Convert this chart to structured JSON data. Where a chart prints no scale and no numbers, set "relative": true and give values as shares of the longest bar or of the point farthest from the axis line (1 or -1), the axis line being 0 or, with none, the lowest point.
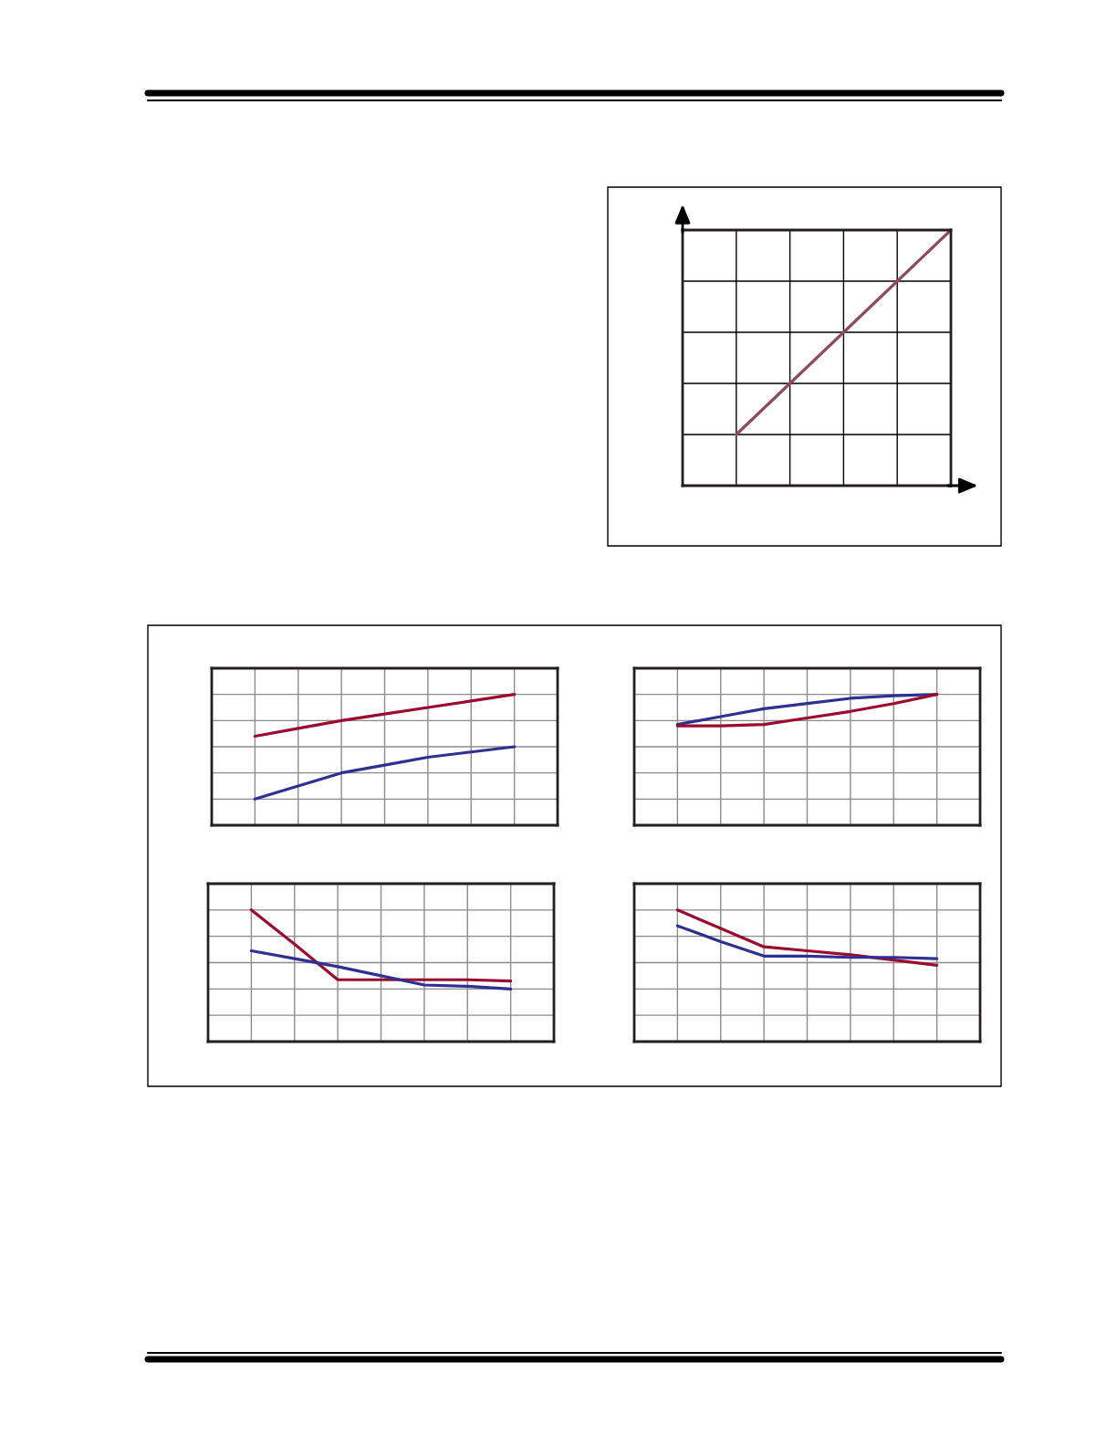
{
  "chart_data": [
    {
      "type": "line",
      "relative": true,
      "tick_labels": false,
      "grid": true,
      "categories": [
        null,
        null,
        null,
        null,
        null,
        null
      ],
      "series": [
        {
          "color": "#8e4a5f",
          "values": [
            null,
            0.2,
            0.4,
            0.6,
            0.8,
            1.0
          ]
        }
      ]
    },
    {
      "type": "line",
      "relative": true,
      "tick_labels": false,
      "grid": true,
      "categories": [
        null,
        null,
        null,
        null,
        null,
        null,
        null,
        null,
        null
      ],
      "series": [
        {
          "color": "#9b0b30",
          "values": [
            null,
            0.68,
            0.74,
            0.8,
            0.85,
            0.9,
            0.95,
            1.0,
            null
          ]
        },
        {
          "color": "#2e3192",
          "values": [
            null,
            0.2,
            0.3,
            0.4,
            0.46,
            0.52,
            0.56,
            0.6,
            null
          ]
        }
      ]
    },
    {
      "type": "line",
      "relative": true,
      "tick_labels": false,
      "grid": true,
      "categories": [
        null,
        null,
        null,
        null,
        null,
        null,
        null,
        null,
        null
      ],
      "series": [
        {
          "color": "#2e3192",
          "values": [
            null,
            0.77,
            0.83,
            0.89,
            0.93,
            0.97,
            0.99,
            1.0,
            null
          ]
        },
        {
          "color": "#9b0b30",
          "values": [
            null,
            0.76,
            0.76,
            0.77,
            0.82,
            0.87,
            0.93,
            1.0,
            null
          ]
        }
      ]
    },
    {
      "type": "line",
      "relative": true,
      "tick_labels": false,
      "grid": true,
      "categories": [
        null,
        null,
        null,
        null,
        null,
        null,
        null,
        null,
        null
      ],
      "series": [
        {
          "color": "#9b0b30",
          "values": [
            null,
            1.0,
            0.74,
            0.47,
            0.47,
            0.47,
            0.47,
            0.46,
            null
          ]
        },
        {
          "color": "#2e3192",
          "values": [
            null,
            0.69,
            0.63,
            0.57,
            0.5,
            0.43,
            0.42,
            0.4,
            null
          ]
        }
      ]
    },
    {
      "type": "line",
      "relative": true,
      "tick_labels": false,
      "grid": true,
      "categories": [
        null,
        null,
        null,
        null,
        null,
        null,
        null,
        null,
        null
      ],
      "series": [
        {
          "color": "#9b0b30",
          "values": [
            null,
            1.0,
            0.86,
            0.72,
            0.69,
            0.66,
            0.62,
            0.58,
            null
          ]
        },
        {
          "color": "#2e3192",
          "values": [
            null,
            0.88,
            0.76,
            0.65,
            0.65,
            0.64,
            0.64,
            0.63,
            null
          ]
        }
      ]
    }
  ]
}
